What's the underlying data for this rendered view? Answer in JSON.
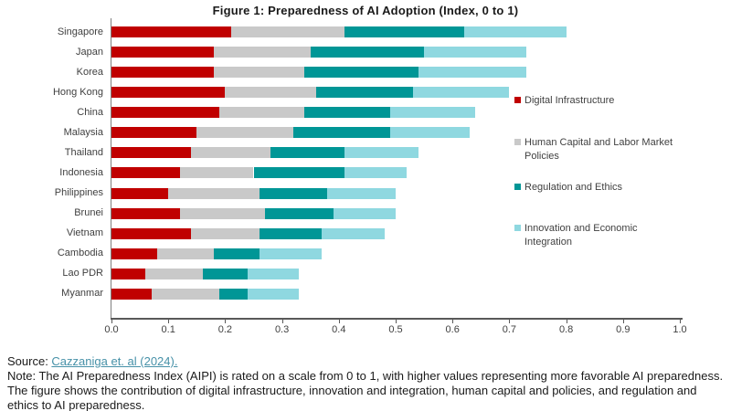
{
  "title": "Figure 1: Preparedness of AI Adoption (Index, 0 to 1)",
  "chart_data": {
    "type": "bar",
    "orientation": "horizontal",
    "stacked": true,
    "title": "Figure 1: Preparedness of AI Adoption (Index, 0 to 1)",
    "xlim": [
      0,
      1
    ],
    "x_ticks": [
      "0.0",
      "0.1",
      "0.2",
      "0.3",
      "0.4",
      "0.5",
      "0.6",
      "0.7",
      "0.8",
      "0.9",
      "1.0"
    ],
    "grid": false,
    "legend_position": "right",
    "categories": [
      "Singapore",
      "Japan",
      "Korea",
      "Hong Kong",
      "China",
      "Malaysia",
      "Thailand",
      "Indonesia",
      "Philippines",
      "Brunei",
      "Vietnam",
      "Cambodia",
      "Lao PDR",
      "Myanmar"
    ],
    "series": [
      {
        "name": "Digital Infrastructure",
        "color": "#C00000",
        "values": [
          0.21,
          0.18,
          0.18,
          0.2,
          0.19,
          0.15,
          0.14,
          0.12,
          0.1,
          0.12,
          0.14,
          0.08,
          0.06,
          0.07
        ]
      },
      {
        "name": "Human Capital and Labor Market Policies",
        "color": "#C9C9C9",
        "values": [
          0.2,
          0.17,
          0.16,
          0.16,
          0.15,
          0.17,
          0.14,
          0.13,
          0.16,
          0.15,
          0.12,
          0.1,
          0.1,
          0.12
        ]
      },
      {
        "name": "Regulation and Ethics",
        "color": "#009696",
        "values": [
          0.21,
          0.2,
          0.2,
          0.17,
          0.15,
          0.17,
          0.13,
          0.16,
          0.12,
          0.12,
          0.11,
          0.08,
          0.08,
          0.05
        ]
      },
      {
        "name": "Innovation and Economic Integration",
        "color": "#8FD8E0",
        "values": [
          0.18,
          0.18,
          0.19,
          0.17,
          0.15,
          0.14,
          0.13,
          0.11,
          0.12,
          0.11,
          0.11,
          0.11,
          0.09,
          0.09
        ]
      }
    ],
    "totals": [
      0.8,
      0.73,
      0.73,
      0.7,
      0.64,
      0.63,
      0.54,
      0.52,
      0.5,
      0.5,
      0.48,
      0.37,
      0.33,
      0.33
    ]
  },
  "footer": {
    "source_label": "Source: ",
    "source_link_text": "Cazzaniga et. al (2024).",
    "note_text": "Note:  The AI Preparedness Index (AIPI) is rated on a scale from 0 to 1, with higher values representing more favorable AI preparedness. The figure shows the contribution of digital infrastructure, innovation and integration, human capital and policies, and regulation and ethics to AI preparedness."
  },
  "colors": {
    "axis_line": "#595959",
    "text": "#404040",
    "link": "#4791A8"
  }
}
